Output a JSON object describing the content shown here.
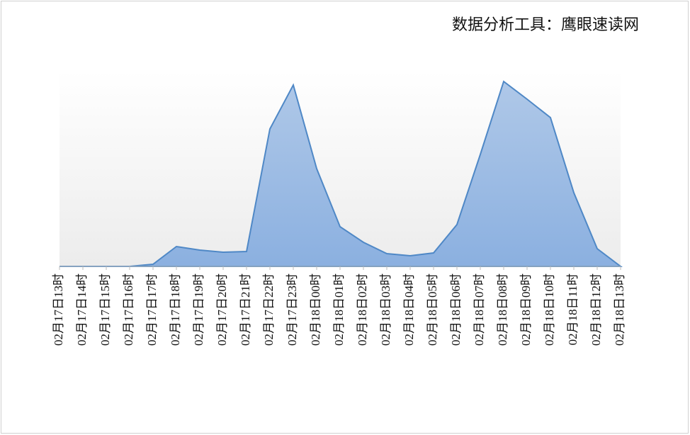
{
  "chart_data": {
    "type": "area",
    "title": "数据分析工具：鹰眼速读网",
    "categories": [
      "02月17日13时",
      "02月17日14时",
      "02月17日15时",
      "02月17日16时",
      "02月17日17时",
      "02月17日18时",
      "02月17日19时",
      "02月17日20时",
      "02月17日21时",
      "02月17日22时",
      "02月17日23时",
      "02月18日00时",
      "02月18日01时",
      "02月18日02时",
      "02月18日03时",
      "02月18日04时",
      "02月18日05时",
      "02月18日06时",
      "02月18日07时",
      "02月18日08时",
      "02月18日09时",
      "02月18日10时",
      "02月18日11时",
      "02月18日12时",
      "02月18日13时"
    ],
    "values": [
      0,
      0,
      0,
      0,
      3,
      28,
      23,
      20,
      21,
      194,
      256,
      138,
      56,
      34,
      18,
      15,
      19,
      59,
      158,
      261,
      236,
      210,
      104,
      25,
      0
    ],
    "color": "#4f88c6",
    "ylim": [
      0,
      276
    ]
  }
}
